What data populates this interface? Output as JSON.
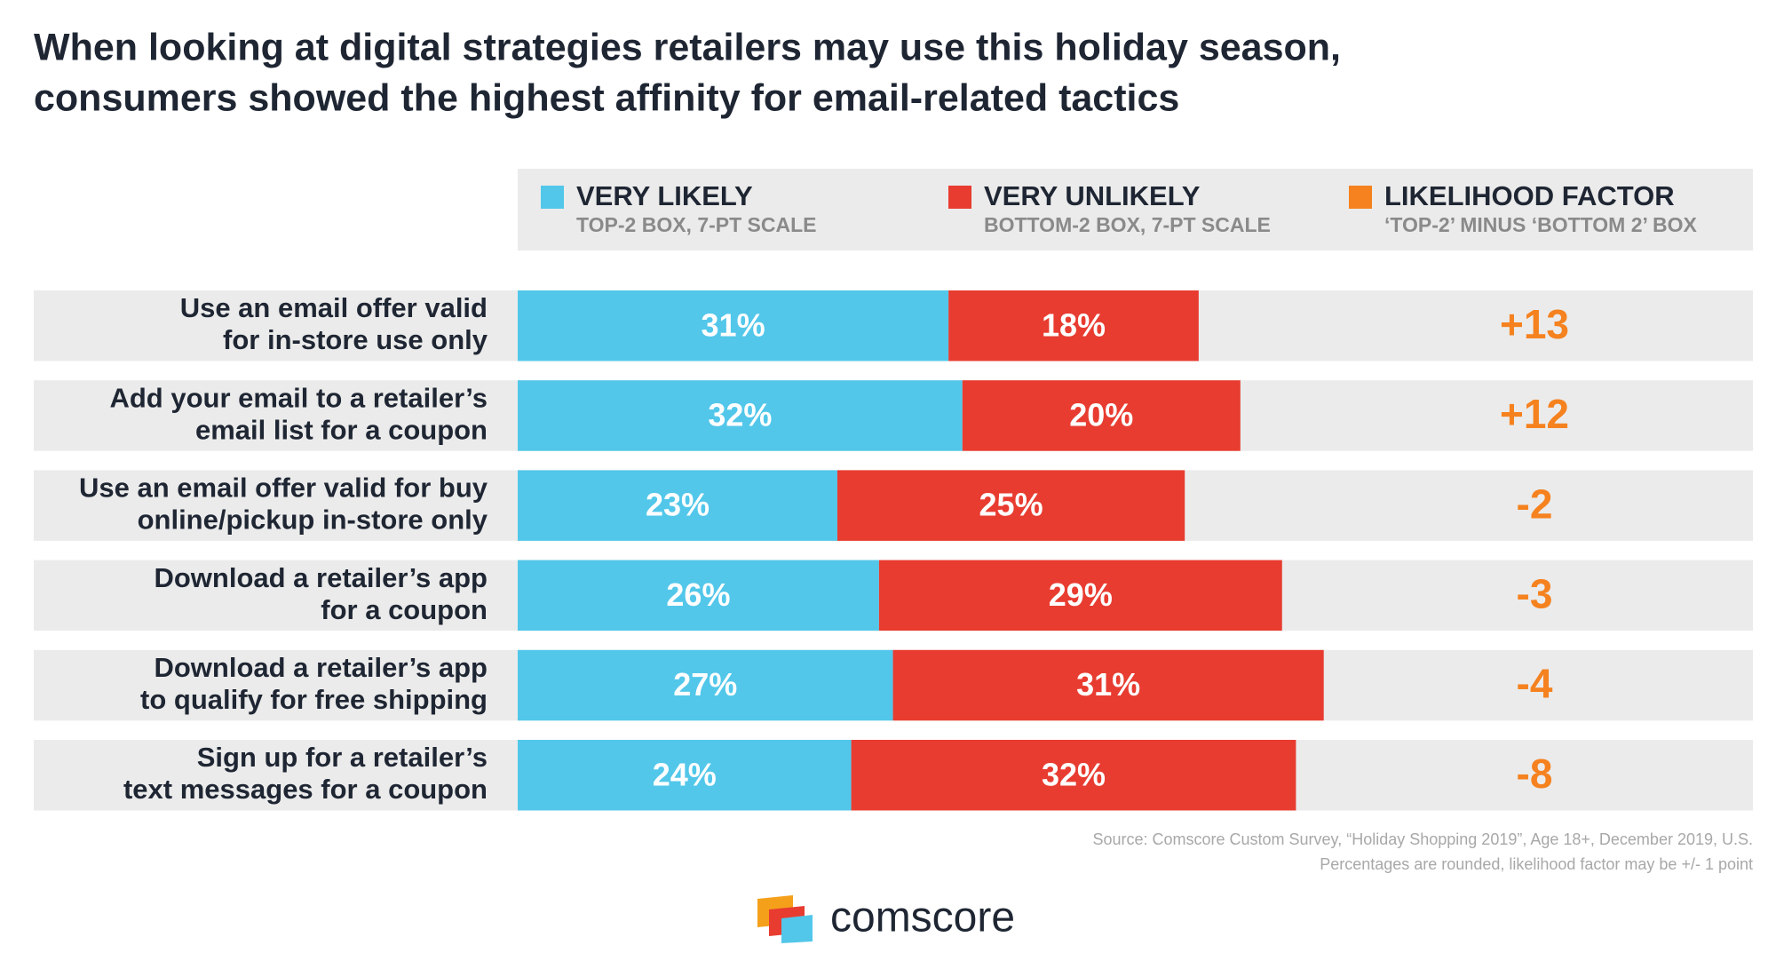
{
  "chart_data": {
    "type": "bar",
    "orientation": "horizontal",
    "stacked": true,
    "title": [
      "When looking at digital strategies retailers may use this holiday season,",
      "consumers showed the highest affinity for email-related tactics"
    ],
    "categories": [
      [
        "Use an email offer valid",
        "for in-store use only"
      ],
      [
        "Add your email to a retailer’s",
        "email list for a coupon"
      ],
      [
        "Use an email offer valid for buy",
        "online/pickup in-store only"
      ],
      [
        "Download a retailer’s app",
        "for a coupon"
      ],
      [
        "Download a retailer’s app",
        "to qualify for free shipping"
      ],
      [
        "Sign up for a retailer’s",
        "text messages for a coupon"
      ]
    ],
    "series": [
      {
        "name": "VERY LIKELY",
        "description": "TOP-2 BOX, 7-PT SCALE",
        "color": "#52c7ea",
        "values": [
          31,
          32,
          23,
          26,
          27,
          24
        ],
        "value_labels": [
          "31%",
          "32%",
          "23%",
          "26%",
          "27%",
          "24%"
        ]
      },
      {
        "name": "VERY UNLIKELY",
        "description": "BOTTOM-2 BOX, 7-PT SCALE",
        "color": "#e83c30",
        "values": [
          18,
          20,
          25,
          29,
          31,
          32
        ],
        "value_labels": [
          "18%",
          "20%",
          "25%",
          "29%",
          "31%",
          "32%"
        ]
      },
      {
        "name": "LIKELIHOOD FACTOR",
        "description": "‘TOP-2’ MINUS ‘BOTTOM 2’ BOX",
        "color": "#f5821f",
        "values": [
          13,
          12,
          -2,
          -3,
          -4,
          -8
        ],
        "value_labels": [
          "+13",
          "+12",
          "-2",
          "-3",
          "-4",
          "-8"
        ]
      }
    ],
    "source": [
      "Source: Comscore Custom Survey, “Holiday Shopping 2019”, Age 18+, December 2019, U.S.",
      "Percentages are rounded, likelihood factor may be +/- 1 point"
    ],
    "brand": "comscore"
  }
}
